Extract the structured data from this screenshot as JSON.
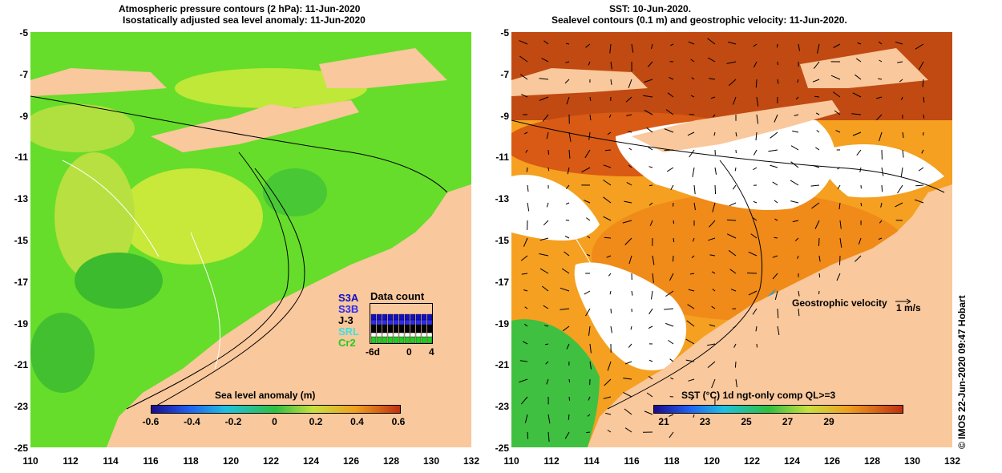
{
  "left_panel": {
    "title_line1": "Atmospheric pressure contours (2 hPa): 11-Jun-2020",
    "title_line2": "Isostatically adjusted sea level anomaly: 11-Jun-2020",
    "colorbar_title": "Sea level anomaly (m)",
    "colorbar_ticks": [
      "-0.6",
      "-0.4",
      "-0.2",
      "0",
      "0.2",
      "0.4",
      "0.6"
    ],
    "colors": {
      "land": "#f9c89c",
      "ocean_base": "#66dd2a",
      "high": "#d8e83a",
      "low": "#36b82e"
    },
    "data_count": {
      "title": "Data count",
      "satellites": [
        {
          "name": "S3A",
          "color": "#1010c0"
        },
        {
          "name": "S3B",
          "color": "#2c2cf0"
        },
        {
          "name": "J-3",
          "color": "#000000"
        },
        {
          "name": "SRL",
          "color": "#40e0e0"
        },
        {
          "name": "Cr2",
          "color": "#22cc22"
        }
      ],
      "axis_ticks": [
        "-6d",
        "0",
        "4"
      ]
    }
  },
  "right_panel": {
    "title_line1": "SST: 10-Jun-2020.",
    "title_line2": "Sealevel contours (0.1 m) and geostrophic velocity: 11-Jun-2020.",
    "colorbar_title": "SST (°C) 1d ngt-only comp QL>=3",
    "colorbar_ticks": [
      "21",
      "23",
      "25",
      "27",
      "29"
    ],
    "velocity_label": "Geostrophic velocity",
    "velocity_scale": "1 m/s",
    "colors": {
      "warm": "#b03a10",
      "mid": "#f5a020",
      "cool": "#40c040",
      "cloud": "#ffffff"
    }
  },
  "axes": {
    "y_ticks": [
      "-5",
      "-7",
      "-9",
      "-11",
      "-13",
      "-15",
      "-17",
      "-19",
      "-21",
      "-23",
      "-25"
    ],
    "x_ticks": [
      "110",
      "112",
      "114",
      "116",
      "118",
      "120",
      "122",
      "124",
      "126",
      "128",
      "130",
      "132"
    ]
  },
  "credit": "© IMOS 22-Jun-2020 09:47 Hobart"
}
